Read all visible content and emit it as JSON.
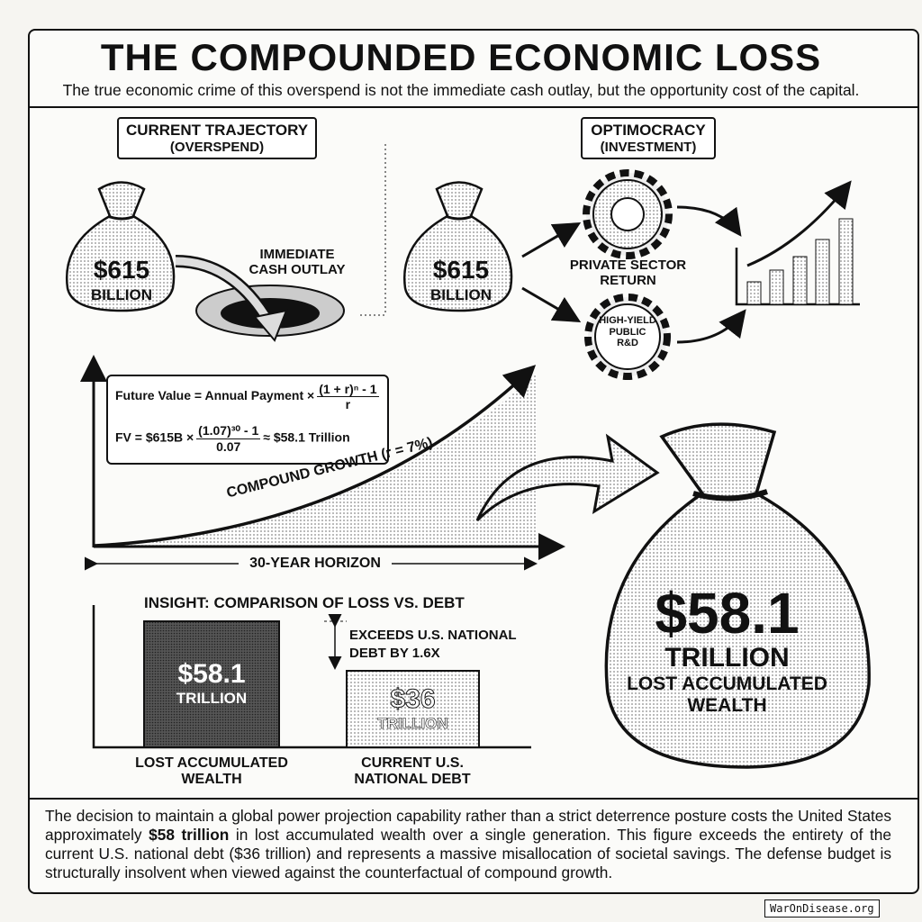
{
  "header": {
    "title": "THE COMPOUNDED ECONOMIC LOSS",
    "subtitle": "The true economic crime of this overspend is not the immediate cash outlay, but the opportunity cost of the capital."
  },
  "left_panel": {
    "heading_line1": "CURRENT TRAJECTORY",
    "heading_line2": "(OVERSPEND)",
    "bag_amount": "$615",
    "bag_unit": "BILLION",
    "outlay_line1": "IMMEDIATE",
    "outlay_line2": "CASH OUTLAY",
    "icons": [
      "money-bag-icon",
      "hole-icon",
      "curved-arrow-icon"
    ]
  },
  "right_panel": {
    "heading_line1": "OPTIMOCRACY",
    "heading_line2": "(INVESTMENT)",
    "bag_amount": "$615",
    "bag_unit": "BILLION",
    "gear1_label_line1": "PRIVATE SECTOR",
    "gear1_label_line2": "RETURN",
    "gear2_label_line1": "HIGH-YIELD",
    "gear2_label_line2": "PUBLIC",
    "gear2_label_line3": "R&D",
    "icons": [
      "money-bag-icon",
      "gear-icon",
      "rising-bar-chart-icon"
    ]
  },
  "growth": {
    "formula_line1_left": "Future Value = Annual Payment ×",
    "formula_line1_num": "(1 + r)ⁿ - 1",
    "formula_line1_den": "r",
    "formula_line2_left": "FV = $615B ×",
    "formula_line2_num": "(1.07)³⁰ - 1",
    "formula_line2_den": "0.07",
    "formula_line2_right": "≈ $58.1 Trillion",
    "curve_label": "COMPOUND GROWTH (r = 7%)",
    "horizon_label": "30-YEAR HORIZON"
  },
  "big_bag": {
    "amount": "$58.1",
    "unit": "TRILLION",
    "label_line1": "LOST ACCUMULATED",
    "label_line2": "WEALTH"
  },
  "comparison": {
    "title": "INSIGHT: COMPARISON OF LOSS VS. DEBT",
    "annotation_line1": "EXCEEDS U.S. NATIONAL",
    "annotation_line2": "DEBT BY 1.6X",
    "bars": [
      {
        "value": "$58.1",
        "unit": "TRILLION",
        "label_line1": "LOST ACCUMULATED",
        "label_line2": "WEALTH",
        "amount": 58.1,
        "color": "#3a3a3a"
      },
      {
        "value": "$36",
        "unit": "TRILLION",
        "label_line1": "CURRENT U.S.",
        "label_line2": "NATIONAL DEBT",
        "amount": 36,
        "color": "#b5b5b5"
      }
    ]
  },
  "footer": {
    "text_before": "The decision to maintain a global power projection capability rather than a strict deterrence posture costs the United States approximately ",
    "text_bold": "$58 trillion",
    "text_after": " in lost accumulated wealth over a single generation. This figure exceeds the entirety of the current U.S. national debt ($36 trillion) and represents a massive misallocation of societal savings. The defense budget is structurally insolvent when viewed against the counterfactual of compound growth."
  },
  "watermark": "WarOnDisease.org"
}
